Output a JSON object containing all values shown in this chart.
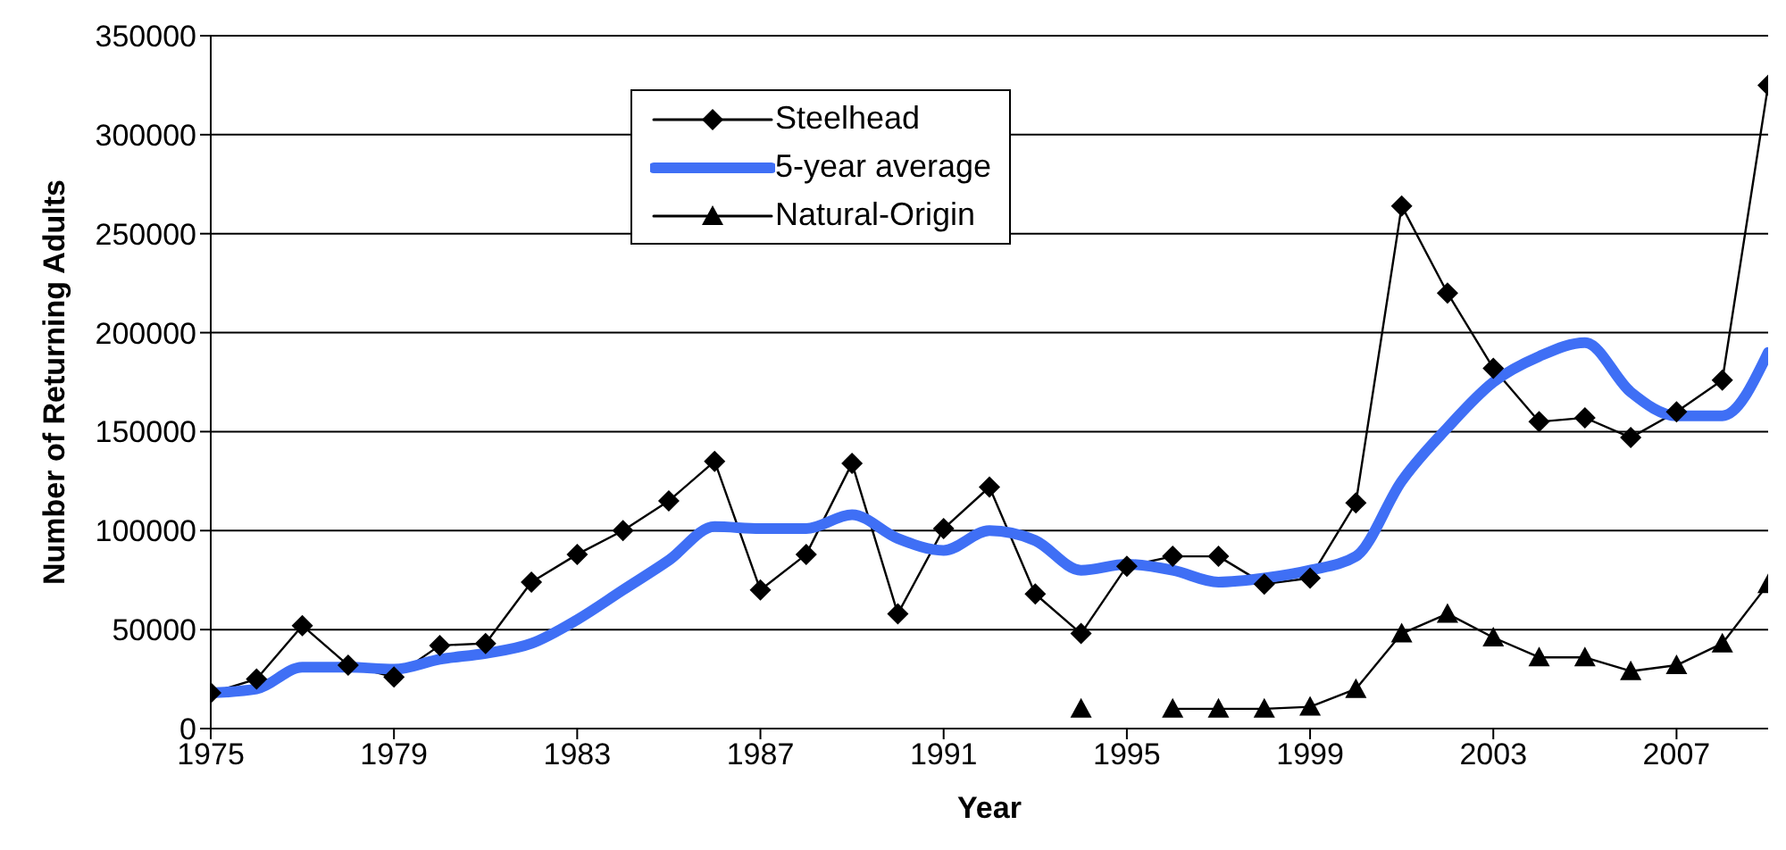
{
  "chart_data": {
    "type": "line",
    "xlabel": "Year",
    "ylabel": "Number of Returning Adults",
    "x": [
      1975,
      1976,
      1977,
      1978,
      1979,
      1980,
      1981,
      1982,
      1983,
      1984,
      1985,
      1986,
      1987,
      1988,
      1989,
      1990,
      1991,
      1992,
      1993,
      1994,
      1995,
      1996,
      1997,
      1998,
      1999,
      2000,
      2001,
      2002,
      2003,
      2004,
      2005,
      2006,
      2007,
      2008,
      2009
    ],
    "series": [
      {
        "name": "Steelhead",
        "color": "#000000",
        "marker": "diamond",
        "values": [
          18000,
          25000,
          52000,
          32000,
          26000,
          42000,
          43000,
          74000,
          88000,
          100000,
          115000,
          135000,
          70000,
          88000,
          134000,
          58000,
          101000,
          122000,
          68000,
          48000,
          82000,
          87000,
          87000,
          73000,
          76000,
          114000,
          264000,
          220000,
          182000,
          155000,
          157000,
          147000,
          160000,
          176000,
          325000
        ]
      },
      {
        "name": "5-year average",
        "color": "#3f6ff5",
        "marker": "none",
        "values": [
          18000,
          20000,
          31000,
          31000,
          30000,
          35000,
          38000,
          43000,
          55000,
          70000,
          85000,
          102000,
          101000,
          101000,
          108000,
          96000,
          90000,
          100000,
          95000,
          80000,
          83000,
          80000,
          74000,
          76000,
          80000,
          87000,
          125000,
          152000,
          175000,
          188000,
          195000,
          170000,
          158000,
          158000,
          190000
        ]
      },
      {
        "name": "Natural-Origin",
        "color": "#000000",
        "marker": "triangle",
        "values": [
          null,
          null,
          null,
          null,
          null,
          null,
          null,
          null,
          null,
          null,
          null,
          null,
          null,
          null,
          null,
          null,
          null,
          null,
          null,
          10000,
          null,
          10000,
          10000,
          10000,
          11000,
          20000,
          48000,
          58000,
          46000,
          36000,
          36000,
          29000,
          32000,
          43000,
          73000
        ]
      }
    ],
    "xlim": [
      1975,
      2009
    ],
    "xticks": [
      1975,
      1979,
      1983,
      1987,
      1991,
      1995,
      1999,
      2003,
      2007
    ],
    "ylim": [
      0,
      350000
    ],
    "yticks": [
      0,
      50000,
      100000,
      150000,
      200000,
      250000,
      300000,
      350000
    ],
    "grid": "y",
    "legend": "top"
  }
}
